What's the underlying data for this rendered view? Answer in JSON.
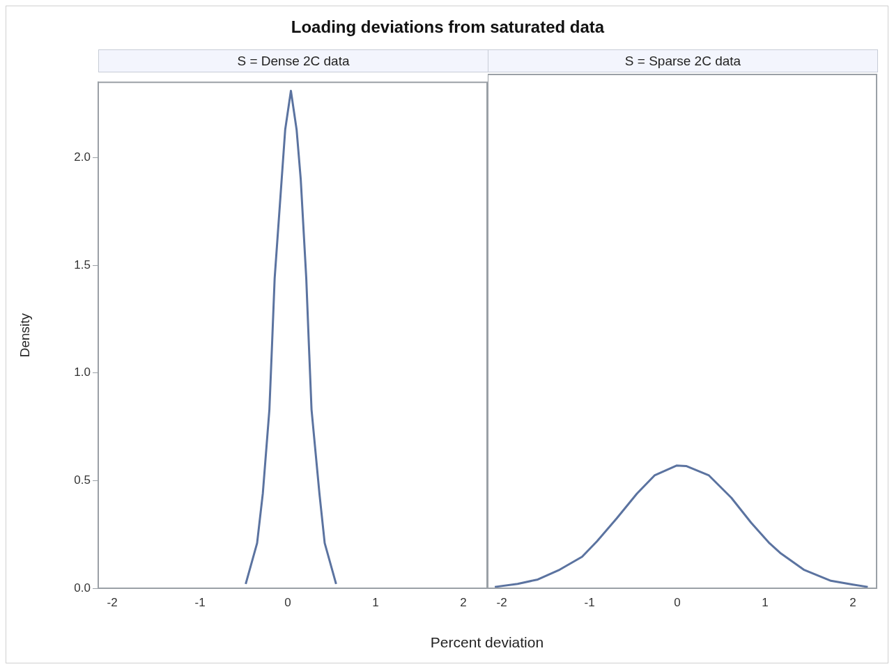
{
  "chart_data": [
    {
      "type": "line",
      "title": "Loading deviations from saturated data",
      "subtitle": "S = Dense 2C data",
      "xlabel": "Percent deviation",
      "ylabel": "Density",
      "color": "#5b73a0",
      "marker": "none",
      "x": [
        -0.48,
        -0.35,
        -0.285,
        -0.21,
        -0.18,
        -0.15,
        -0.07,
        -0.03,
        0.035,
        0.1,
        0.147,
        0.21,
        0.24,
        0.27,
        0.36,
        0.42,
        0.55
      ],
      "values": [
        0.02,
        0.21,
        0.44,
        0.83,
        1.13,
        1.44,
        1.9,
        2.13,
        2.31,
        2.13,
        1.9,
        1.44,
        1.13,
        0.83,
        0.44,
        0.21,
        0.02
      ],
      "xlim": [
        -2.16,
        2.27
      ],
      "ylim": [
        0,
        2.35
      ],
      "xticks": [
        -2,
        -1,
        0,
        1,
        2
      ],
      "yticks": [
        {
          "value": 0,
          "label": "0.0"
        },
        {
          "value": 0.5,
          "label": "0.5"
        },
        {
          "value": 1,
          "label": "1.0"
        },
        {
          "value": 1.5,
          "label": "1.5"
        },
        {
          "value": 2,
          "label": "2.0"
        }
      ]
    },
    {
      "type": "line",
      "subtitle": "S = Sparse 2C data",
      "color": "#5b73a0",
      "marker": "none",
      "tick_labels": "x",
      "x": [
        -2.08,
        -1.82,
        -1.59,
        -1.34,
        -1.085,
        -0.915,
        -0.69,
        -0.46,
        -0.26,
        -0.01,
        0.1,
        0.36,
        0.615,
        0.84,
        1.04,
        1.18,
        1.44,
        1.75,
        2.0,
        2.17
      ],
      "values": [
        0.006,
        0.02,
        0.04,
        0.085,
        0.144,
        0.215,
        0.32,
        0.433,
        0.516,
        0.561,
        0.559,
        0.516,
        0.414,
        0.3,
        0.21,
        0.159,
        0.085,
        0.034,
        0.017,
        0.006
      ],
      "xlim": [
        -2.16,
        2.27
      ],
      "ylim": [
        0,
        2.35
      ],
      "xticks": [
        -2,
        -1,
        0,
        1,
        2
      ]
    }
  ]
}
